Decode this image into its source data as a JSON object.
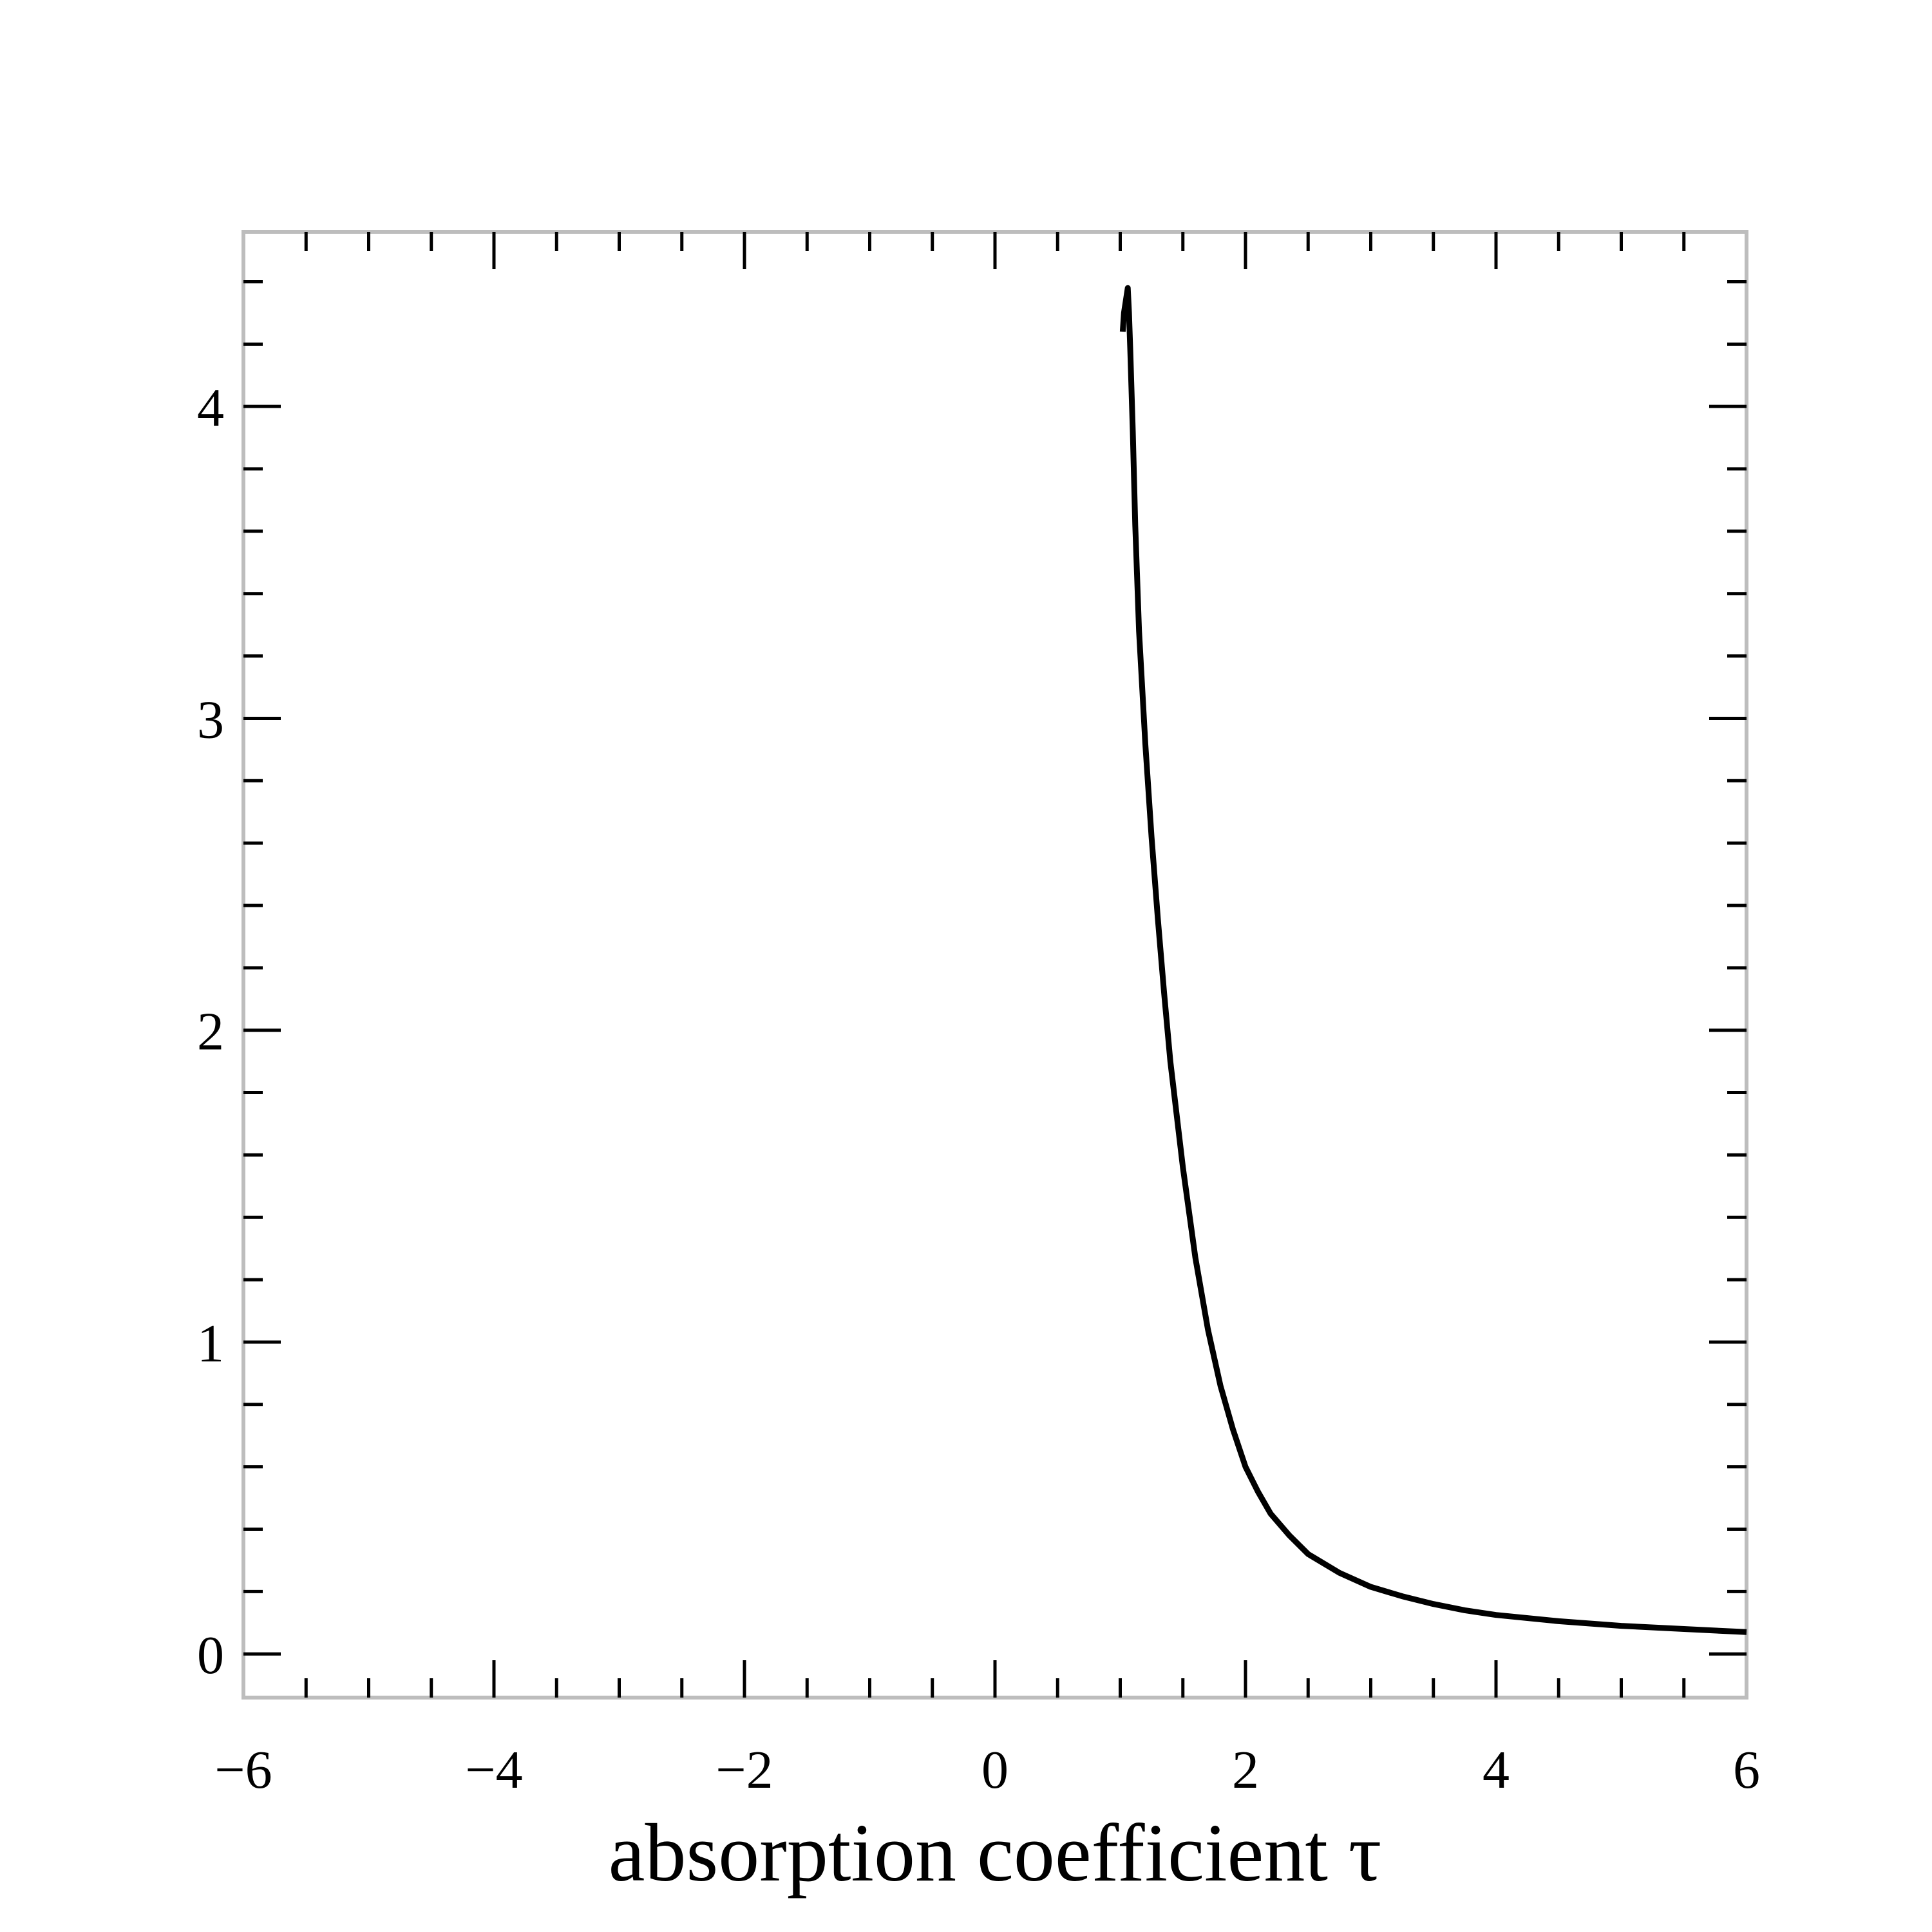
{
  "chart_data": {
    "type": "line",
    "title": "",
    "xlabel": "absorption coefficient τ",
    "ylabel": "",
    "xlim": [
      -6,
      6
    ],
    "ylim": [
      -0.14,
      4.56
    ],
    "x_ticks": [
      -6,
      -4,
      -2,
      0,
      2,
      4,
      6
    ],
    "x_tick_labels": [
      "−6",
      "−4",
      "−2",
      "0",
      "2",
      "4",
      "6"
    ],
    "y_ticks": [
      0,
      1,
      2,
      3,
      4
    ],
    "y_tick_labels": [
      "0",
      "1",
      "2",
      "3",
      "4"
    ],
    "x_minor_step": 0.5,
    "y_minor_step": 0.2,
    "grid": false,
    "frame_color": "#bdbdbd",
    "series": [
      {
        "color": "#000000",
        "x": [
          1.02,
          1.03,
          1.06,
          1.07,
          1.08,
          1.1,
          1.12,
          1.15,
          1.2,
          1.25,
          1.3,
          1.35,
          1.4,
          1.5,
          1.6,
          1.7,
          1.8,
          1.9,
          2.0,
          2.1,
          2.2,
          2.35,
          2.5,
          2.75,
          3.0,
          3.25,
          3.5,
          3.75,
          4.0,
          4.5,
          5.0,
          5.5,
          6.0
        ],
        "y": [
          4.24,
          4.3,
          4.38,
          4.3,
          4.18,
          3.92,
          3.62,
          3.28,
          2.92,
          2.62,
          2.36,
          2.12,
          1.9,
          1.56,
          1.27,
          1.04,
          0.86,
          0.72,
          0.6,
          0.52,
          0.45,
          0.38,
          0.32,
          0.26,
          0.215,
          0.185,
          0.16,
          0.14,
          0.125,
          0.105,
          0.09,
          0.08,
          0.07
        ]
      }
    ]
  }
}
